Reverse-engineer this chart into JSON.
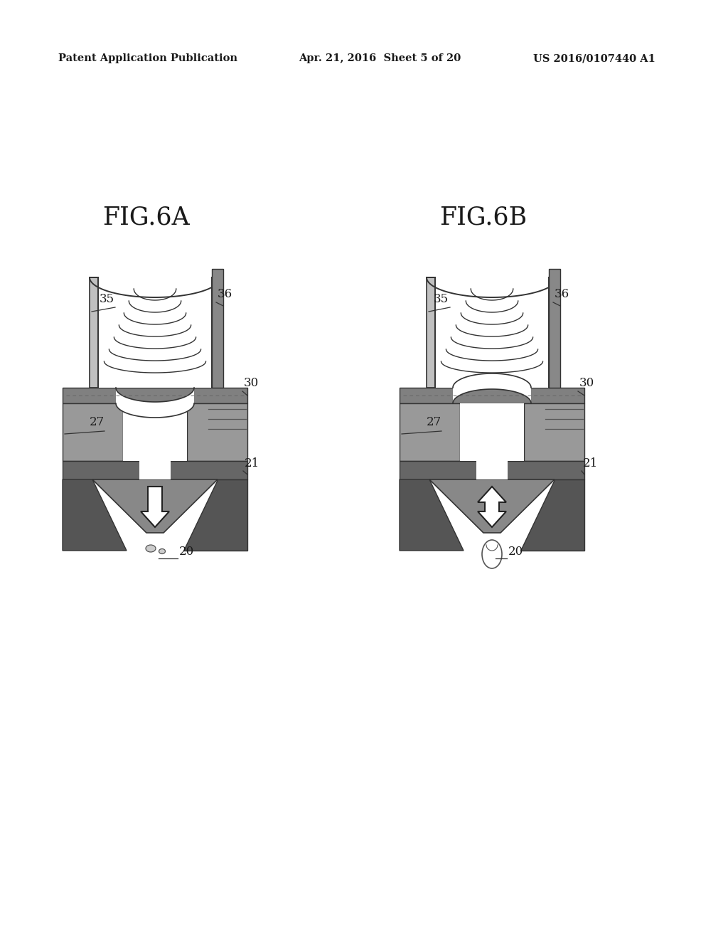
{
  "header_left": "Patent Application Publication",
  "header_mid": "Apr. 21, 2016  Sheet 5 of 20",
  "header_right": "US 2016/0107440 A1",
  "fig_a_label": "FIG.6A",
  "fig_b_label": "FIG.6B",
  "bg_color": "#ffffff",
  "text_color": "#1a1a1a",
  "gray_dark": "#444444",
  "gray_mid": "#777777",
  "gray_light": "#aaaaaa",
  "gray_plate": "#888888",
  "gray_nozzle": "#666666"
}
